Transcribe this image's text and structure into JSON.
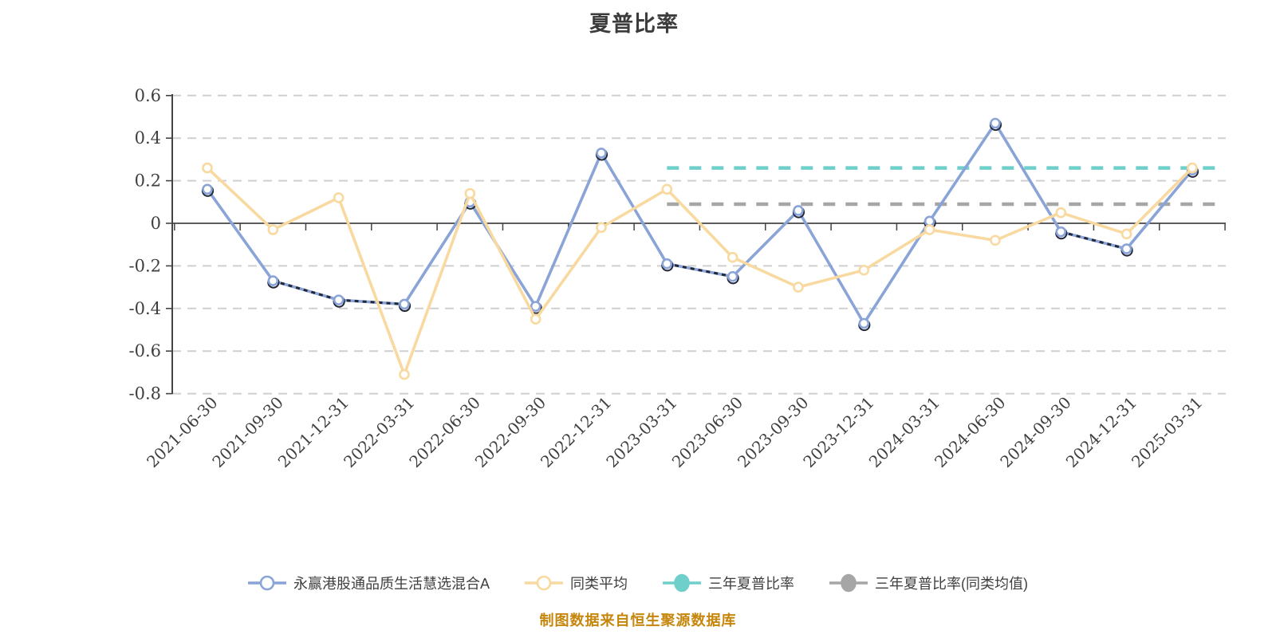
{
  "title": {
    "text": "夏普比率"
  },
  "footer": {
    "text": "制图数据来自恒生聚源数据库",
    "color": "#C5860B"
  },
  "legend": {
    "items": [
      {
        "label": "永赢港股通品质生活慧选混合A",
        "color": "#8AA4D8",
        "marker": "hollow"
      },
      {
        "label": "同类平均",
        "color": "#F8D9A0",
        "marker": "hollow"
      },
      {
        "label": "三年夏普比率",
        "color": "#6FCFCB",
        "marker": "solid"
      },
      {
        "label": "三年夏普比率(同类均值)",
        "color": "#A6A6A6",
        "marker": "solid"
      }
    ]
  },
  "chart_data": {
    "type": "line",
    "title": "夏普比率",
    "categories": [
      "2021-06-30",
      "2021-09-30",
      "2021-12-31",
      "2022-03-31",
      "2022-06-30",
      "2022-09-30",
      "2022-12-31",
      "2023-03-31",
      "2023-06-30",
      "2023-09-30",
      "2023-12-31",
      "2024-03-31",
      "2024-06-30",
      "2024-09-30",
      "2024-12-31",
      "2025-03-31"
    ],
    "series": [
      {
        "name": "永赢港股通品质生活慧选混合A",
        "type": "line",
        "color": "#8AA4D8",
        "values": [
          0.16,
          -0.27,
          -0.36,
          -0.38,
          0.1,
          -0.39,
          0.33,
          -0.19,
          -0.25,
          0.06,
          -0.47,
          0.01,
          0.47,
          -0.04,
          -0.12,
          0.25
        ]
      },
      {
        "name": "同类平均",
        "type": "line",
        "color": "#F8D9A0",
        "values": [
          0.26,
          -0.03,
          0.12,
          -0.71,
          0.14,
          -0.45,
          -0.02,
          0.16,
          -0.16,
          -0.3,
          -0.22,
          -0.03,
          -0.08,
          0.05,
          -0.05,
          0.26
        ]
      },
      {
        "name": "三年夏普比率",
        "type": "constant-dashed",
        "color": "#6FCFCB",
        "value": 0.26,
        "start_category": "2023-03-31"
      },
      {
        "name": "三年夏普比率(同类均值)",
        "type": "constant-dashed",
        "color": "#A6A6A6",
        "value": 0.09,
        "start_category": "2023-03-31"
      }
    ],
    "y_ticks": [
      "0.6",
      "0.4",
      "0.2",
      "0",
      "-0.2",
      "-0.4",
      "-0.6",
      "-0.8"
    ],
    "ylim": [
      -0.8,
      0.6
    ],
    "grid": {
      "horizontal_dashed": true
    },
    "legend_position": "bottom",
    "x_label_rotation": 45
  }
}
